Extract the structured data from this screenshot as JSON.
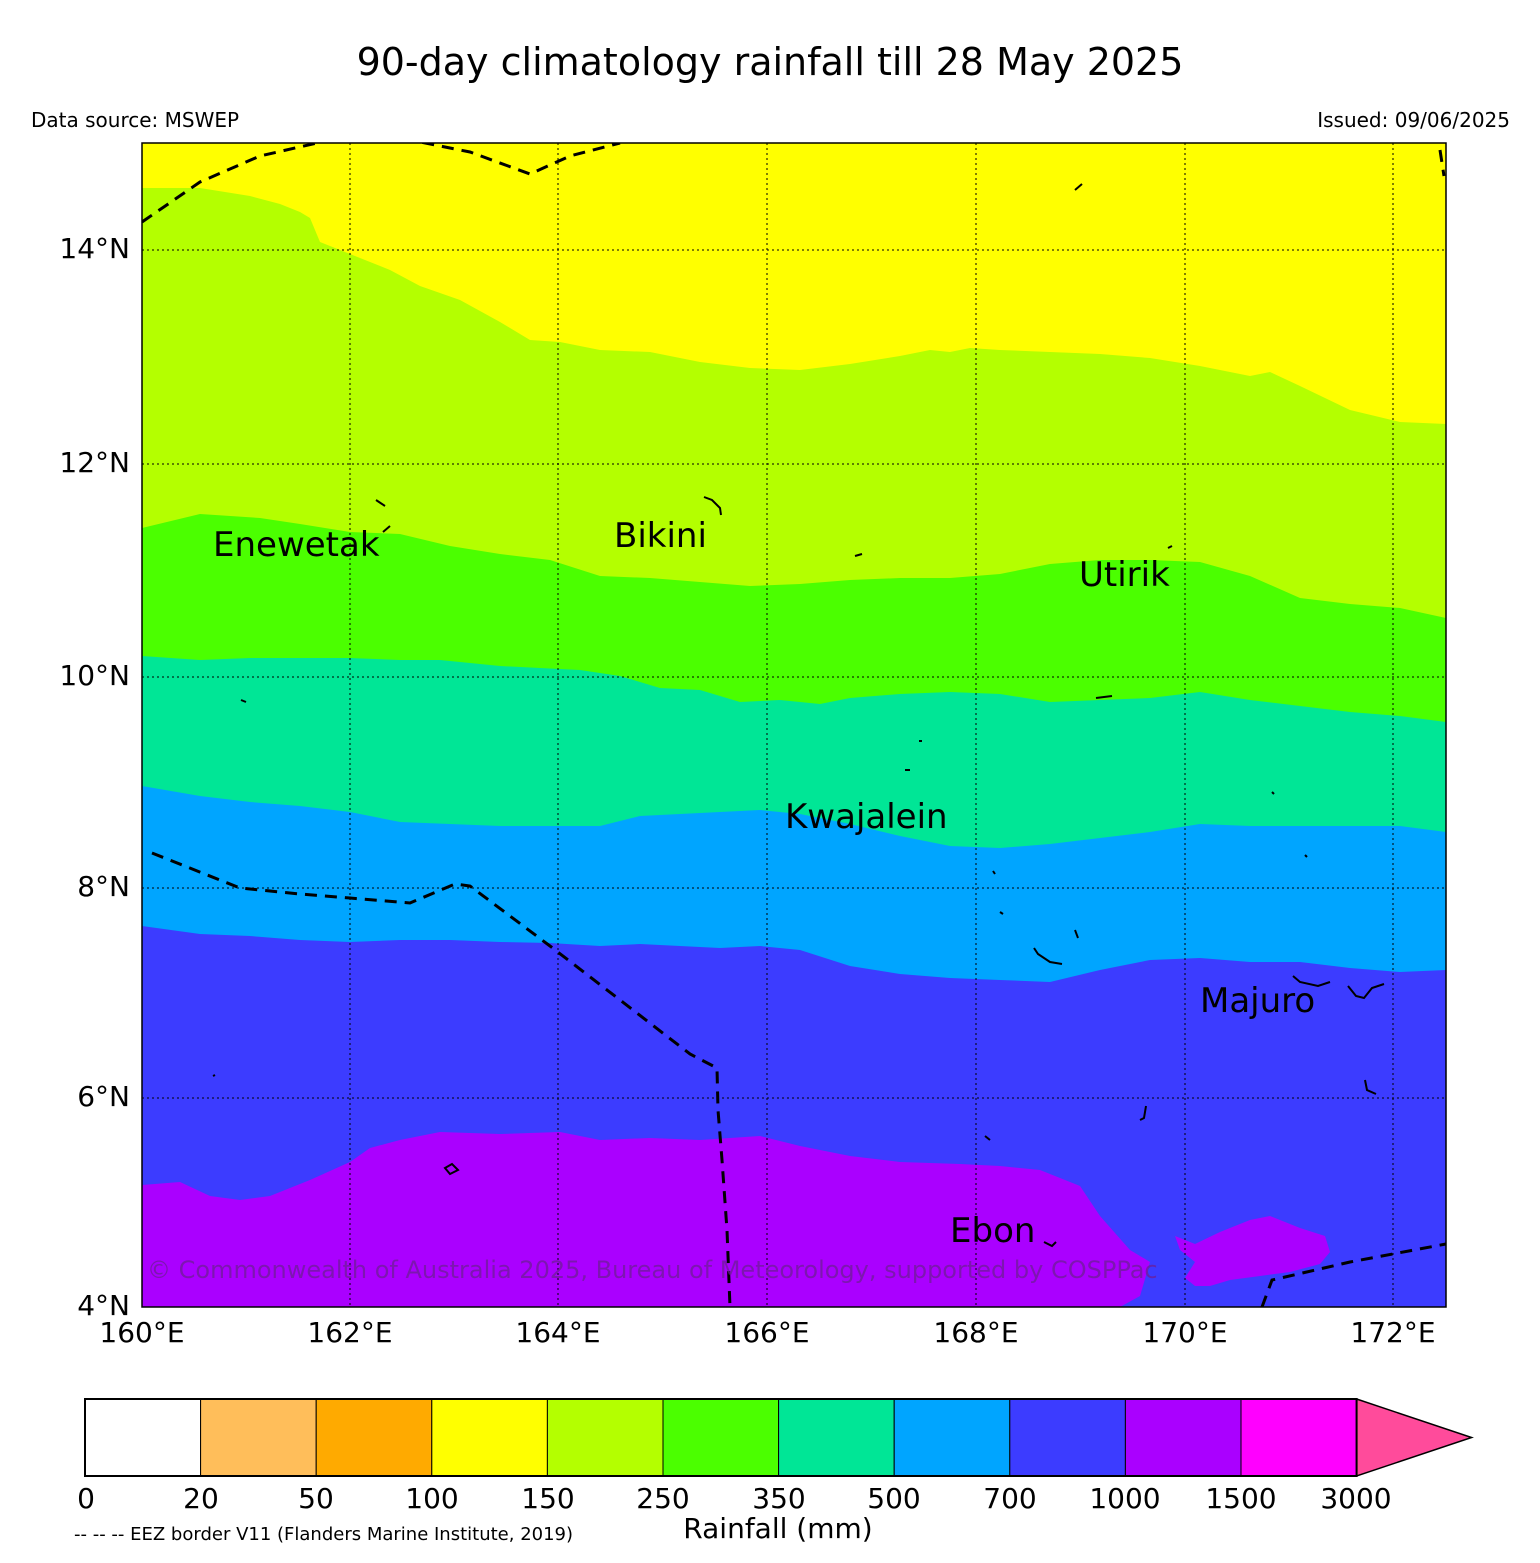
{
  "title": "90-day climatology rainfall till 28 May 2025",
  "data_source": "Data source: MSWEP",
  "issued": "Issued: 09/06/2025",
  "copyright": "© Commonwealth of Australia 2025, Bureau of Meteorology, supported by COSPPac",
  "map": {
    "lon_labels": [
      "160°E",
      "162°E",
      "164°E",
      "166°E",
      "168°E",
      "170°E",
      "172°E"
    ],
    "lat_labels": [
      "14°N",
      "12°N",
      "10°N",
      "8°N",
      "6°N",
      "4°N"
    ],
    "places": [
      "Enewetak",
      "Bikini",
      "Utirik",
      "Kwajalein",
      "Majuro",
      "Ebon"
    ],
    "rainfall_bands_top_to_bottom_mm": [
      "100-150",
      "150-250",
      "250-350",
      "350-500",
      "500-700",
      "700-1000",
      "1000-1500"
    ]
  },
  "colorbar": {
    "ticks": [
      "0",
      "20",
      "50",
      "100",
      "150",
      "250",
      "350",
      "500",
      "700",
      "1000",
      "1500",
      "3000"
    ],
    "colors": [
      "#ffffff",
      "#ffbe5a",
      "#ffaa00",
      "#ffff00",
      "#b4ff00",
      "#4bff00",
      "#00e696",
      "#00a5ff",
      "#3c3cff",
      "#aa00ff",
      "#ff00ff"
    ],
    "extend_color": "#ff4b9b",
    "label": "Rainfall (mm)"
  },
  "legend_note": "-- -- -- EEZ border V11 (Flanders Marine Institute, 2019)"
}
